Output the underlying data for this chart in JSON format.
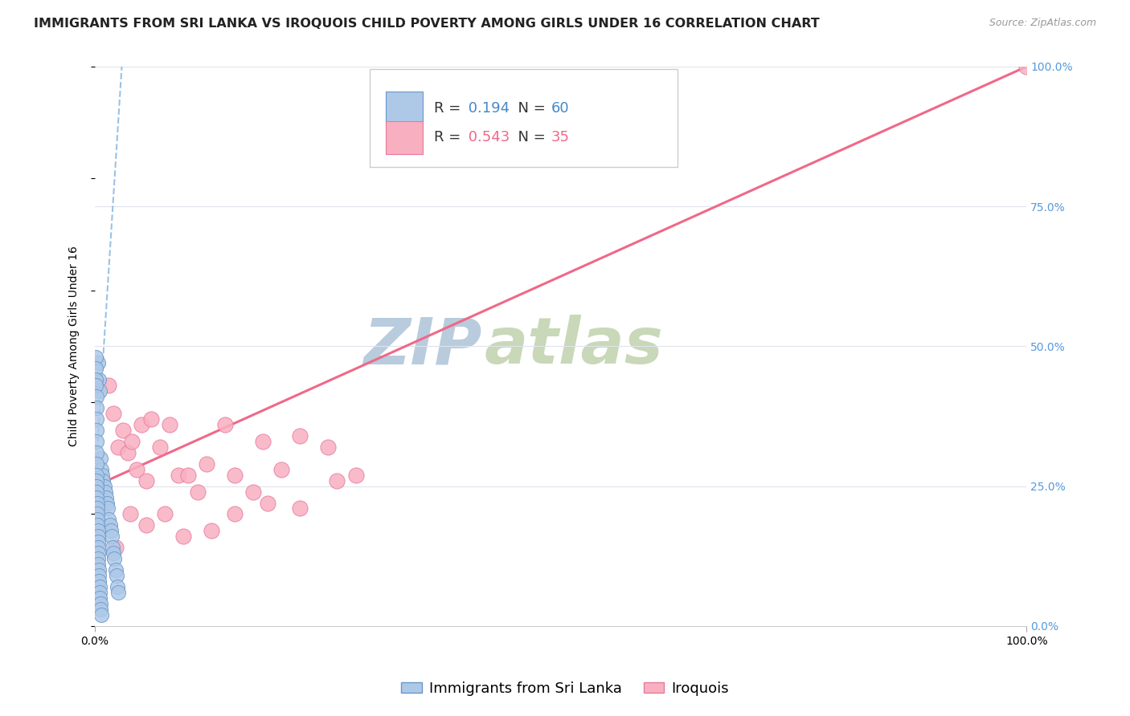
{
  "title": "IMMIGRANTS FROM SRI LANKA VS IROQUOIS CHILD POVERTY AMONG GIRLS UNDER 16 CORRELATION CHART",
  "source": "Source: ZipAtlas.com",
  "ylabel": "Child Poverty Among Girls Under 16",
  "watermark_zip": "ZIP",
  "watermark_atlas": "atlas",
  "blue_label": "Immigrants from Sri Lanka",
  "pink_label": "Iroquois",
  "blue_R": 0.194,
  "blue_N": 60,
  "pink_R": 0.543,
  "pink_N": 35,
  "blue_color": "#aec8e8",
  "blue_edge": "#6898c8",
  "pink_color": "#f8b0c0",
  "pink_edge": "#e878a0",
  "blue_line_color": "#88b8e0",
  "pink_line_color": "#f06888",
  "blue_text_color": "#4488cc",
  "pink_text_color": "#f06888",
  "right_tick_color": "#5599dd",
  "blue_dots_x": [
    0.3,
    0.4,
    0.5,
    0.6,
    0.7,
    0.8,
    0.9,
    1.0,
    1.1,
    1.2,
    1.3,
    1.4,
    1.5,
    1.6,
    1.7,
    1.8,
    1.9,
    2.0,
    2.1,
    2.2,
    2.3,
    2.4,
    2.5,
    0.1,
    0.1,
    0.1,
    0.1,
    0.15,
    0.15,
    0.15,
    0.15,
    0.15,
    0.2,
    0.2,
    0.2,
    0.2,
    0.2,
    0.2,
    0.2,
    0.25,
    0.25,
    0.25,
    0.25,
    0.25,
    0.3,
    0.3,
    0.3,
    0.35,
    0.35,
    0.35,
    0.35,
    0.4,
    0.4,
    0.4,
    0.5,
    0.5,
    0.5,
    0.6,
    0.6,
    0.7
  ],
  "blue_dots_y": [
    47,
    44,
    42,
    30,
    28,
    27,
    26,
    25,
    24,
    23,
    22,
    21,
    19,
    18,
    17,
    16,
    14,
    13,
    12,
    10,
    9,
    7,
    6,
    48,
    46,
    44,
    43,
    41,
    39,
    37,
    35,
    33,
    31,
    29,
    27,
    26,
    25,
    24,
    23,
    22,
    21,
    20,
    19,
    18,
    17,
    16,
    15,
    14,
    13,
    12,
    11,
    10,
    9,
    8,
    7,
    6,
    5,
    4,
    3,
    2
  ],
  "pink_dots_x": [
    1.5,
    2.0,
    2.5,
    3.0,
    3.5,
    4.0,
    4.5,
    5.0,
    5.5,
    6.0,
    7.0,
    8.0,
    9.0,
    10.0,
    11.0,
    12.0,
    14.0,
    15.0,
    17.0,
    18.0,
    20.0,
    22.0,
    25.0,
    28.0,
    2.2,
    3.8,
    5.5,
    7.5,
    9.5,
    12.5,
    15.0,
    18.5,
    22.0,
    26.0,
    100.0
  ],
  "pink_dots_y": [
    43,
    38,
    32,
    35,
    31,
    33,
    28,
    36,
    26,
    37,
    32,
    36,
    27,
    27,
    24,
    29,
    36,
    27,
    24,
    33,
    28,
    34,
    32,
    27,
    14,
    20,
    18,
    20,
    16,
    17,
    20,
    22,
    21,
    26,
    100
  ],
  "blue_trendline": [
    0,
    25,
    2.5,
    90
  ],
  "pink_trendline": [
    0,
    25,
    100,
    100
  ],
  "xlim": [
    0,
    100
  ],
  "ylim": [
    0,
    100
  ],
  "y_ticks_right": [
    0,
    25,
    50,
    75,
    100
  ],
  "title_fontsize": 11.5,
  "source_fontsize": 9,
  "label_fontsize": 10,
  "tick_fontsize": 10,
  "legend_fontsize": 13,
  "watermark_fontsize": 58,
  "watermark_color": "#c5d8ee",
  "background_color": "#ffffff",
  "grid_color": "#e0e4ec"
}
